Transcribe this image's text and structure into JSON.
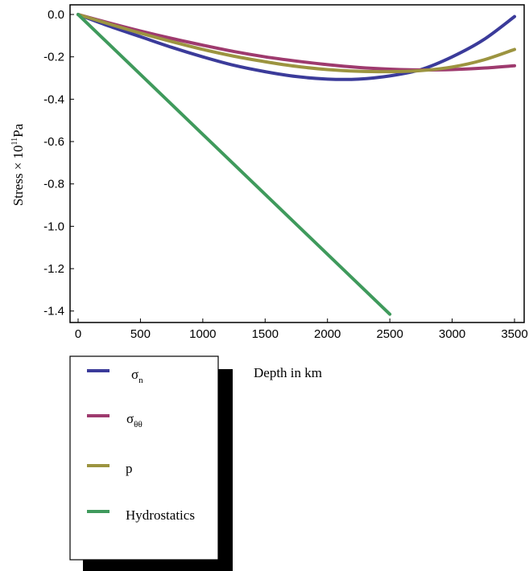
{
  "chart_data": {
    "type": "line",
    "xlabel": "Depth in km",
    "ylabel_main": "Stress × 10",
    "ylabel_exp": "11",
    "ylabel_unit": "Pa",
    "xlim": [
      0,
      3500
    ],
    "ylim": [
      -1.42,
      0.0
    ],
    "x_ticks": [
      0,
      500,
      1000,
      1500,
      2000,
      2500,
      3000,
      3500
    ],
    "x_tick_labels": [
      "0",
      "500",
      "1000",
      "1500",
      "2000",
      "2500",
      "3000",
      "3500"
    ],
    "y_ticks": [
      0.0,
      -0.2,
      -0.4,
      -0.6,
      -0.8,
      -1.0,
      -1.2,
      -1.4
    ],
    "y_tick_labels": [
      "0.0",
      "-0.2",
      "-0.4",
      "-0.6",
      "-0.8",
      "-1.0",
      "-1.2",
      "-1.4"
    ],
    "grid": false,
    "legend_position": "bottom-left",
    "series": [
      {
        "name": "σ",
        "subscript": "n",
        "color": "#3b3b9a",
        "x": [
          0,
          250,
          500,
          750,
          1000,
          1250,
          1500,
          1750,
          2000,
          2250,
          2500,
          2750,
          3000,
          3250,
          3500
        ],
        "y": [
          0.0,
          -0.055,
          -0.105,
          -0.155,
          -0.2,
          -0.24,
          -0.27,
          -0.293,
          -0.305,
          -0.305,
          -0.29,
          -0.26,
          -0.2,
          -0.12,
          -0.01
        ]
      },
      {
        "name": "σ",
        "subscript": "θθ",
        "color": "#9e3a6e",
        "x": [
          0,
          250,
          500,
          750,
          1000,
          1250,
          1500,
          1750,
          2000,
          2250,
          2500,
          2750,
          3000,
          3250,
          3500
        ],
        "y": [
          0.0,
          -0.04,
          -0.078,
          -0.113,
          -0.145,
          -0.175,
          -0.2,
          -0.22,
          -0.237,
          -0.25,
          -0.258,
          -0.262,
          -0.26,
          -0.253,
          -0.242
        ]
      },
      {
        "name": "p",
        "subscript": "",
        "color": "#9c9440",
        "x": [
          0,
          250,
          500,
          750,
          1000,
          1250,
          1500,
          1750,
          2000,
          2250,
          2500,
          2750,
          3000,
          3250,
          3500
        ],
        "y": [
          0.0,
          -0.045,
          -0.088,
          -0.128,
          -0.165,
          -0.197,
          -0.223,
          -0.245,
          -0.26,
          -0.268,
          -0.27,
          -0.265,
          -0.248,
          -0.215,
          -0.165
        ]
      },
      {
        "name": "Hydrostatics",
        "subscript": "",
        "color": "#3f9a5c",
        "x": [
          0,
          2500
        ],
        "y": [
          0.0,
          -1.415
        ]
      }
    ]
  }
}
